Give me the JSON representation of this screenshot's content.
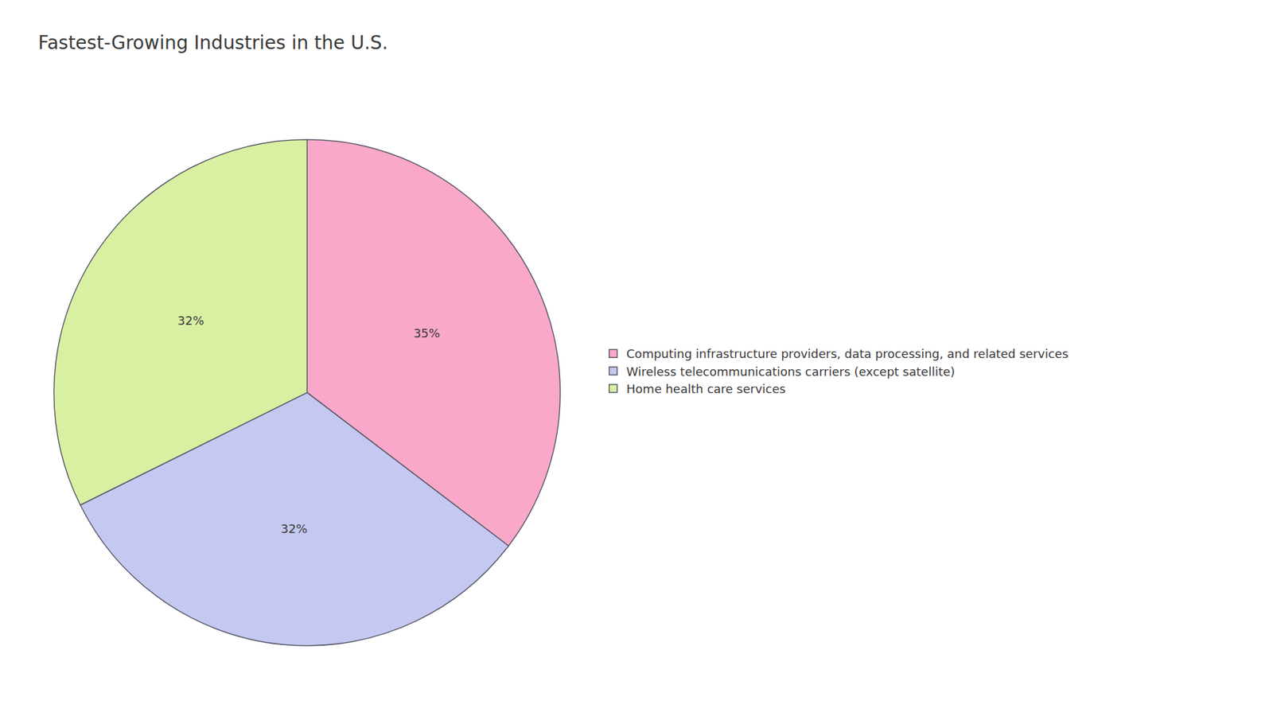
{
  "chart_data": {
    "type": "pie",
    "title": "Fastest-Growing Industries in the U.S.",
    "categories": [
      "Computing infrastructure providers, data processing, and related services",
      "Wireless telecommunications carriers (except satellite)",
      "Home health care services"
    ],
    "values": [
      35,
      32,
      32
    ],
    "value_labels": [
      "35%",
      "32%",
      "32%"
    ],
    "colors": [
      "#f9a8c9",
      "#c5c8f0",
      "#d9f0a3"
    ],
    "data_labels": true,
    "legend": "right"
  }
}
